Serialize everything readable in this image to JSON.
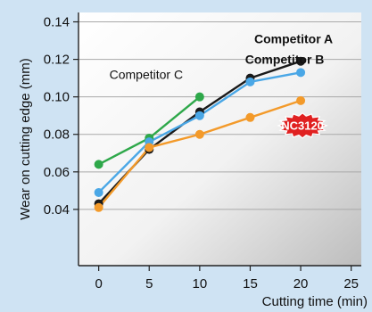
{
  "chart_data": {
    "type": "line",
    "xlabel": "Cutting time (min)",
    "ylabel": "Wear on cutting edge (mm)",
    "xlim": [
      -2,
      26
    ],
    "ylim": [
      0.01,
      0.145
    ],
    "xticks": [
      0,
      5,
      10,
      15,
      20,
      25
    ],
    "yticks": [
      0.04,
      0.06,
      0.08,
      0.1,
      0.12,
      0.14
    ],
    "ytick_labels": [
      "0.04",
      "0.06",
      "0.08",
      "0.10",
      "0.12",
      "0.14"
    ],
    "series": [
      {
        "name": "Competitor C",
        "color": "#2ea84a",
        "x": [
          0,
          5,
          10
        ],
        "y": [
          0.064,
          0.078,
          0.1
        ]
      },
      {
        "name": "Competitor A",
        "color": "#1a1a1a",
        "x": [
          0,
          5,
          10,
          15,
          20
        ],
        "y": [
          0.043,
          0.072,
          0.092,
          0.11,
          0.119
        ]
      },
      {
        "name": "Competitor B",
        "color": "#4aa7e6",
        "x": [
          0,
          5,
          10,
          15,
          20
        ],
        "y": [
          0.049,
          0.076,
          0.09,
          0.108,
          0.113
        ]
      },
      {
        "name": "NC3120",
        "color": "#f39a2a",
        "x": [
          0,
          5,
          10,
          15,
          20
        ],
        "y": [
          0.041,
          0.073,
          0.08,
          0.089,
          0.098
        ]
      }
    ],
    "badge_color": "#e02020"
  }
}
